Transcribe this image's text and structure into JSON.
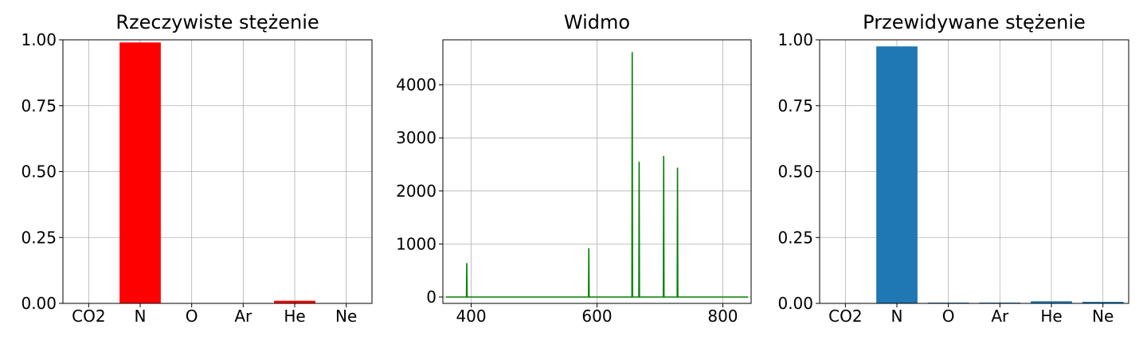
{
  "chart_data": [
    {
      "type": "bar",
      "title": "Rzeczywiste stężenie",
      "categories": [
        "CO2",
        "N",
        "O",
        "Ar",
        "He",
        "Ne"
      ],
      "values": [
        0.0,
        0.99,
        0.0,
        0.0,
        0.01,
        0.0
      ],
      "ylim": [
        0,
        1
      ],
      "yticks": [
        "0.00",
        "0.25",
        "0.50",
        "0.75",
        "1.00"
      ],
      "color": "#ff0000",
      "grid": true
    },
    {
      "type": "line",
      "title": "Widmo",
      "xlim": [
        355,
        845
      ],
      "ylim": [
        -120,
        4850
      ],
      "xticks": [
        "400",
        "600",
        "800"
      ],
      "yticks": [
        "0",
        "1000",
        "2000",
        "3000",
        "4000"
      ],
      "color": "#008000",
      "grid": true,
      "baseline_range": [
        360,
        840
      ],
      "peaks": [
        {
          "x": 393,
          "y": 640
        },
        {
          "x": 587,
          "y": 920
        },
        {
          "x": 656,
          "y": 4620
        },
        {
          "x": 667,
          "y": 2550
        },
        {
          "x": 706,
          "y": 2660
        },
        {
          "x": 728,
          "y": 2440
        }
      ]
    },
    {
      "type": "bar",
      "title": "Przewidywane stężenie",
      "categories": [
        "CO2",
        "N",
        "O",
        "Ar",
        "He",
        "Ne"
      ],
      "values": [
        0.0,
        0.975,
        0.003,
        0.003,
        0.008,
        0.006
      ],
      "ylim": [
        0,
        1
      ],
      "yticks": [
        "0.00",
        "0.25",
        "0.50",
        "0.75",
        "1.00"
      ],
      "color": "#1f77b4",
      "grid": true
    }
  ]
}
